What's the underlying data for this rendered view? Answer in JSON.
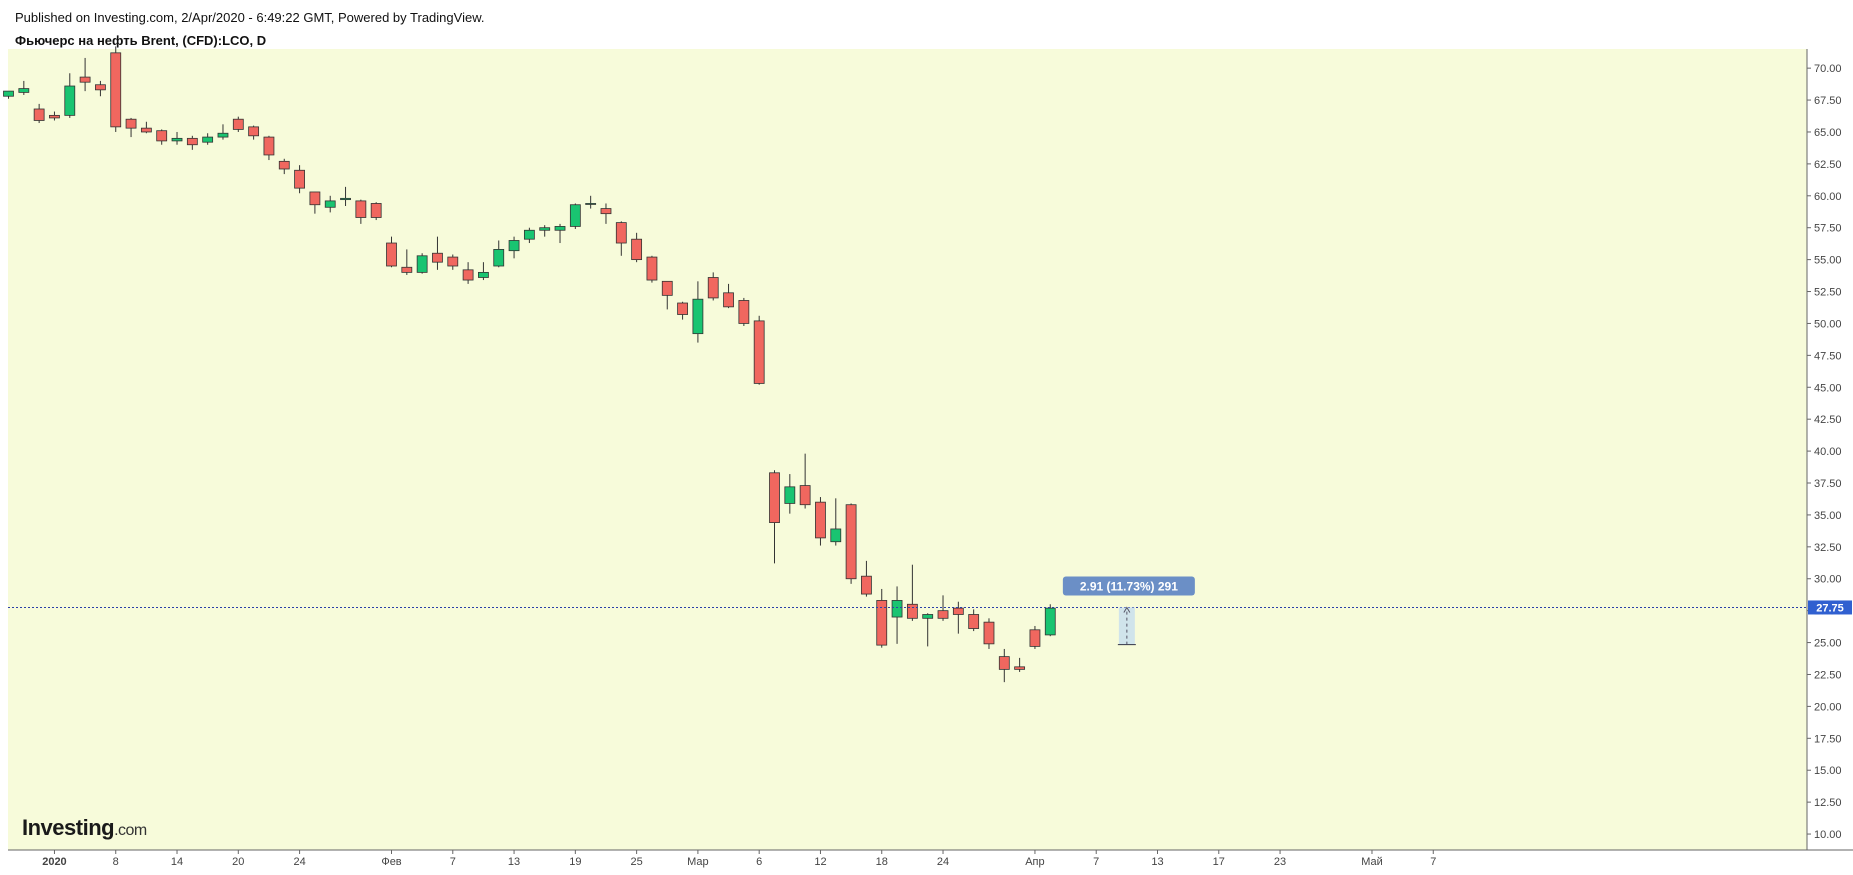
{
  "header": {
    "published": "Published on Investing.com, 2/Apr/2020 - 6:49:22 GMT, Powered by TradingView.",
    "title": "Фьючерс на нефть Brent, (CFD):LCO, D"
  },
  "logo": {
    "brand": "Investing",
    "suffix": ".com"
  },
  "colors": {
    "plot_bg": "#f7fbda",
    "up": "#19c471",
    "down": "#f0675f",
    "wick": "#333333",
    "price_line": "#2b3fa8",
    "price_tag": "#3060d0",
    "measure": "#6b8fc6",
    "axis": "#444444"
  },
  "chart_data": {
    "type": "candlestick",
    "ylim": [
      8.75,
      71.5
    ],
    "y_ticks": [
      10.0,
      12.5,
      15.0,
      17.5,
      20.0,
      22.5,
      25.0,
      27.5,
      30.0,
      32.5,
      35.0,
      37.5,
      40.0,
      42.5,
      45.0,
      47.5,
      50.0,
      52.5,
      55.0,
      57.5,
      60.0,
      62.5,
      65.0,
      67.5,
      70.0
    ],
    "y_tick_labels": [
      "10.00",
      "12.50",
      "15.00",
      "17.50",
      "20.00",
      "22.50",
      "25.00",
      "27.50",
      "30.00",
      "32.50",
      "35.00",
      "37.50",
      "40.00",
      "42.50",
      "45.00",
      "47.50",
      "50.00",
      "52.50",
      "55.00",
      "57.50",
      "60.00",
      "62.50",
      "65.00",
      "67.50",
      "70.00"
    ],
    "x_ticks": [
      {
        "label": "2020",
        "slot": 3,
        "bold": true
      },
      {
        "label": "8",
        "slot": 7
      },
      {
        "label": "14",
        "slot": 11
      },
      {
        "label": "20",
        "slot": 15
      },
      {
        "label": "24",
        "slot": 19
      },
      {
        "label": "Фев",
        "slot": 25
      },
      {
        "label": "7",
        "slot": 29
      },
      {
        "label": "13",
        "slot": 33
      },
      {
        "label": "19",
        "slot": 37
      },
      {
        "label": "25",
        "slot": 41
      },
      {
        "label": "Мар",
        "slot": 45
      },
      {
        "label": "6",
        "slot": 49
      },
      {
        "label": "12",
        "slot": 53
      },
      {
        "label": "18",
        "slot": 57
      },
      {
        "label": "24",
        "slot": 61
      },
      {
        "label": "Апр",
        "slot": 67
      },
      {
        "label": "7",
        "slot": 71
      },
      {
        "label": "13",
        "slot": 75
      },
      {
        "label": "17",
        "slot": 79
      },
      {
        "label": "23",
        "slot": 83
      },
      {
        "label": "Май",
        "slot": 89
      },
      {
        "label": "7",
        "slot": 93
      }
    ],
    "candles": [
      {
        "slot": 0,
        "open": 67.8,
        "high": 68.2,
        "low": 67.6,
        "close": 68.2
      },
      {
        "slot": 1,
        "open": 68.1,
        "high": 69.0,
        "low": 67.9,
        "close": 68.4
      },
      {
        "slot": 2,
        "open": 66.8,
        "high": 67.2,
        "low": 65.7,
        "close": 65.9
      },
      {
        "slot": 3,
        "open": 66.3,
        "high": 66.6,
        "low": 65.9,
        "close": 66.1
      },
      {
        "slot": 4,
        "open": 66.3,
        "high": 69.6,
        "low": 66.1,
        "close": 68.6
      },
      {
        "slot": 5,
        "open": 69.3,
        "high": 70.8,
        "low": 68.2,
        "close": 68.9
      },
      {
        "slot": 6,
        "open": 68.7,
        "high": 69.0,
        "low": 67.8,
        "close": 68.3
      },
      {
        "slot": 7,
        "open": 71.2,
        "high": 71.7,
        "low": 65.0,
        "close": 65.4
      },
      {
        "slot": 8,
        "open": 66.0,
        "high": 66.1,
        "low": 64.6,
        "close": 65.3
      },
      {
        "slot": 9,
        "open": 65.3,
        "high": 65.8,
        "low": 64.9,
        "close": 65.0
      },
      {
        "slot": 10,
        "open": 65.1,
        "high": 65.2,
        "low": 64.0,
        "close": 64.3
      },
      {
        "slot": 11,
        "open": 64.3,
        "high": 65.0,
        "low": 64.0,
        "close": 64.5
      },
      {
        "slot": 12,
        "open": 64.5,
        "high": 64.7,
        "low": 63.6,
        "close": 64.0
      },
      {
        "slot": 13,
        "open": 64.2,
        "high": 64.9,
        "low": 64.0,
        "close": 64.6
      },
      {
        "slot": 14,
        "open": 64.6,
        "high": 65.6,
        "low": 64.4,
        "close": 64.9
      },
      {
        "slot": 15,
        "open": 66.0,
        "high": 66.2,
        "low": 65.0,
        "close": 65.2
      },
      {
        "slot": 16,
        "open": 65.4,
        "high": 65.5,
        "low": 64.4,
        "close": 64.7
      },
      {
        "slot": 17,
        "open": 64.6,
        "high": 64.7,
        "low": 62.8,
        "close": 63.2
      },
      {
        "slot": 18,
        "open": 62.7,
        "high": 62.9,
        "low": 61.7,
        "close": 62.1
      },
      {
        "slot": 19,
        "open": 62.0,
        "high": 62.4,
        "low": 60.2,
        "close": 60.6
      },
      {
        "slot": 20,
        "open": 60.3,
        "high": 60.3,
        "low": 58.6,
        "close": 59.3
      },
      {
        "slot": 21,
        "open": 59.1,
        "high": 60.0,
        "low": 58.7,
        "close": 59.6
      },
      {
        "slot": 22,
        "open": 59.7,
        "high": 60.7,
        "low": 59.2,
        "close": 59.8
      },
      {
        "slot": 23,
        "open": 59.6,
        "high": 59.7,
        "low": 57.8,
        "close": 58.3
      },
      {
        "slot": 24,
        "open": 59.4,
        "high": 59.5,
        "low": 58.1,
        "close": 58.3
      },
      {
        "slot": 25,
        "open": 56.3,
        "high": 56.8,
        "low": 54.4,
        "close": 54.5
      },
      {
        "slot": 26,
        "open": 54.4,
        "high": 55.8,
        "low": 53.8,
        "close": 54.0
      },
      {
        "slot": 27,
        "open": 54.0,
        "high": 55.5,
        "low": 53.9,
        "close": 55.3
      },
      {
        "slot": 28,
        "open": 55.5,
        "high": 56.8,
        "low": 54.2,
        "close": 54.8
      },
      {
        "slot": 29,
        "open": 55.2,
        "high": 55.4,
        "low": 54.2,
        "close": 54.5
      },
      {
        "slot": 30,
        "open": 54.2,
        "high": 54.8,
        "low": 53.1,
        "close": 53.4
      },
      {
        "slot": 31,
        "open": 53.6,
        "high": 54.8,
        "low": 53.4,
        "close": 54.0
      },
      {
        "slot": 32,
        "open": 54.5,
        "high": 56.5,
        "low": 54.4,
        "close": 55.8
      },
      {
        "slot": 33,
        "open": 55.7,
        "high": 56.8,
        "low": 55.1,
        "close": 56.5
      },
      {
        "slot": 34,
        "open": 56.6,
        "high": 57.5,
        "low": 56.3,
        "close": 57.3
      },
      {
        "slot": 35,
        "open": 57.3,
        "high": 57.7,
        "low": 56.8,
        "close": 57.5
      },
      {
        "slot": 36,
        "open": 57.3,
        "high": 57.8,
        "low": 56.3,
        "close": 57.6
      },
      {
        "slot": 37,
        "open": 57.6,
        "high": 59.4,
        "low": 57.4,
        "close": 59.3
      },
      {
        "slot": 38,
        "open": 59.4,
        "high": 60.0,
        "low": 59.0,
        "close": 59.4
      },
      {
        "slot": 39,
        "open": 59.0,
        "high": 59.4,
        "low": 57.8,
        "close": 58.6
      },
      {
        "slot": 40,
        "open": 57.9,
        "high": 58.0,
        "low": 55.3,
        "close": 56.3
      },
      {
        "slot": 41,
        "open": 56.6,
        "high": 57.1,
        "low": 54.8,
        "close": 55.0
      },
      {
        "slot": 42,
        "open": 55.2,
        "high": 55.3,
        "low": 53.2,
        "close": 53.4
      },
      {
        "slot": 43,
        "open": 53.3,
        "high": 53.3,
        "low": 51.1,
        "close": 52.2
      },
      {
        "slot": 44,
        "open": 51.6,
        "high": 51.7,
        "low": 50.3,
        "close": 50.7
      },
      {
        "slot": 45,
        "open": 49.2,
        "high": 53.3,
        "low": 48.5,
        "close": 51.9
      },
      {
        "slot": 46,
        "open": 53.6,
        "high": 54.0,
        "low": 51.8,
        "close": 52.0
      },
      {
        "slot": 47,
        "open": 52.4,
        "high": 53.1,
        "low": 51.2,
        "close": 51.3
      },
      {
        "slot": 48,
        "open": 51.8,
        "high": 52.0,
        "low": 49.8,
        "close": 50.0
      },
      {
        "slot": 49,
        "open": 50.2,
        "high": 50.6,
        "low": 45.2,
        "close": 45.3
      },
      {
        "slot": 50,
        "open": 38.3,
        "high": 38.5,
        "low": 31.2,
        "close": 34.4
      },
      {
        "slot": 51,
        "open": 35.9,
        "high": 38.2,
        "low": 35.1,
        "close": 37.2
      },
      {
        "slot": 52,
        "open": 37.3,
        "high": 39.8,
        "low": 35.5,
        "close": 35.8
      },
      {
        "slot": 53,
        "open": 36.0,
        "high": 36.4,
        "low": 32.6,
        "close": 33.2
      },
      {
        "slot": 54,
        "open": 32.9,
        "high": 36.3,
        "low": 32.6,
        "close": 33.9
      },
      {
        "slot": 55,
        "open": 35.8,
        "high": 35.9,
        "low": 29.6,
        "close": 30.0
      },
      {
        "slot": 56,
        "open": 30.2,
        "high": 31.4,
        "low": 28.6,
        "close": 28.8
      },
      {
        "slot": 57,
        "open": 28.3,
        "high": 29.2,
        "low": 24.6,
        "close": 24.8
      },
      {
        "slot": 58,
        "open": 27.0,
        "high": 29.4,
        "low": 24.9,
        "close": 28.3
      },
      {
        "slot": 59,
        "open": 28.0,
        "high": 31.1,
        "low": 26.7,
        "close": 26.9
      },
      {
        "slot": 60,
        "open": 26.9,
        "high": 27.3,
        "low": 24.7,
        "close": 27.2
      },
      {
        "slot": 61,
        "open": 27.5,
        "high": 28.7,
        "low": 26.7,
        "close": 26.9
      },
      {
        "slot": 62,
        "open": 27.7,
        "high": 28.2,
        "low": 25.7,
        "close": 27.2
      },
      {
        "slot": 63,
        "open": 27.2,
        "high": 27.6,
        "low": 25.9,
        "close": 26.1
      },
      {
        "slot": 64,
        "open": 26.6,
        "high": 26.9,
        "low": 24.5,
        "close": 24.9
      },
      {
        "slot": 65,
        "open": 23.9,
        "high": 24.5,
        "low": 21.9,
        "close": 22.9
      },
      {
        "slot": 66,
        "open": 23.1,
        "high": 23.8,
        "low": 22.7,
        "close": 22.9
      },
      {
        "slot": 67,
        "open": 26.0,
        "high": 26.3,
        "low": 24.5,
        "close": 24.7
      },
      {
        "slot": 68,
        "open": 25.6,
        "high": 28.0,
        "low": 25.5,
        "close": 27.7
      }
    ],
    "current_price": 27.75,
    "current_price_label": "27.75",
    "measure": {
      "label": "2.91 (11.73%) 291",
      "slot": 73,
      "from": 24.84,
      "to": 27.75
    }
  }
}
